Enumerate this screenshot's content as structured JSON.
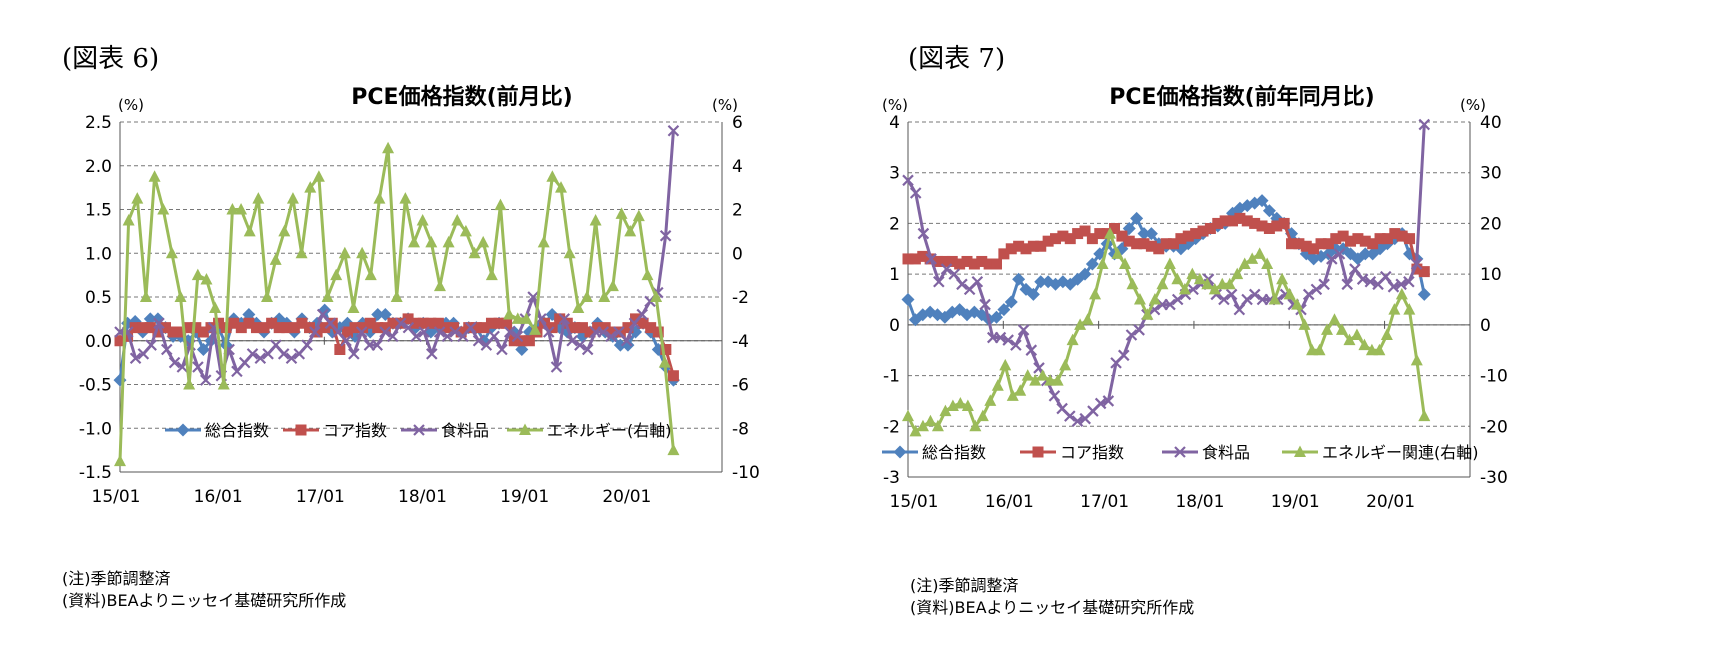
{
  "figures": [
    {
      "label": "(図表 6)",
      "note": "(注)季節調整済",
      "source": "(資料)BEAよりニッセイ基礎研究所作成"
    },
    {
      "label": "(図表 7)",
      "note": "(注)季節調整済",
      "source": "(資料)BEAよりニッセイ基礎研究所作成"
    }
  ],
  "chart_data": [
    {
      "type": "line",
      "title": "PCE価格指数(前月比)",
      "y_unit_left": "(%)",
      "y_unit_right": "(%)",
      "ylim": [
        -1.5,
        2.5
      ],
      "y2lim": [
        -10,
        6
      ],
      "yticks": [
        "2.5",
        "2.0",
        "1.5",
        "1.0",
        "0.5",
        "0.0",
        "-0.5",
        "-1.0",
        "-1.5"
      ],
      "y2ticks": [
        "6",
        "4",
        "2",
        "0",
        "-2",
        "-4",
        "-6",
        "-8",
        "-10"
      ],
      "xticks": [
        "15/01",
        "16/01",
        "17/01",
        "18/01",
        "19/01",
        "20/01"
      ],
      "grid": true,
      "legend_position": "bottom-inside",
      "x_start": "2015-01",
      "series": [
        {
          "name": "総合指数",
          "color": "#4f81bd",
          "marker": "diamond",
          "axis": "left",
          "values": [
            -0.45,
            0.2,
            0.22,
            0.1,
            0.25,
            0.25,
            0.15,
            0.05,
            0.05,
            0.0,
            0.1,
            -0.1,
            0.0,
            0.15,
            -0.05,
            0.25,
            0.2,
            0.3,
            0.2,
            0.1,
            0.2,
            0.25,
            0.2,
            0.1,
            0.25,
            0.15,
            0.2,
            0.35,
            0.1,
            0.15,
            0.2,
            0.05,
            0.2,
            0.1,
            0.3,
            0.3,
            0.2,
            0.2,
            0.25,
            0.15,
            0.2,
            0.1,
            0.15,
            0.2,
            0.2,
            0.1,
            0.15,
            0.15,
            0.0,
            0.15,
            0.2,
            0.2,
            0.1,
            -0.1,
            0.1,
            0.15,
            0.2,
            0.3,
            0.15,
            0.1,
            0.15,
            0.05,
            0.1,
            0.2,
            0.1,
            0.05,
            -0.05,
            -0.05,
            0.1,
            0.2,
            0.1,
            -0.1,
            -0.3,
            -0.45
          ]
        },
        {
          "name": "コア指数",
          "color": "#c0504d",
          "marker": "square",
          "axis": "left",
          "values": [
            0.0,
            0.05,
            0.15,
            0.15,
            0.15,
            0.1,
            0.15,
            0.1,
            0.1,
            0.15,
            0.15,
            0.1,
            0.15,
            0.2,
            0.15,
            0.2,
            0.15,
            0.2,
            0.15,
            0.15,
            0.2,
            0.15,
            0.15,
            0.15,
            0.2,
            0.15,
            0.1,
            0.15,
            0.2,
            -0.1,
            0.1,
            0.15,
            0.15,
            0.2,
            0.15,
            0.15,
            0.2,
            0.2,
            0.25,
            0.2,
            0.2,
            0.2,
            0.2,
            0.15,
            0.15,
            0.1,
            0.15,
            0.15,
            0.15,
            0.2,
            0.2,
            0.2,
            0.0,
            0.0,
            0.0,
            0.1,
            0.2,
            0.15,
            0.25,
            0.2,
            0.15,
            0.15,
            0.1,
            0.15,
            0.15,
            0.1,
            0.1,
            0.15,
            0.25,
            0.2,
            0.15,
            0.1,
            -0.1,
            -0.4
          ]
        },
        {
          "name": "食料品",
          "color": "#8064a2",
          "marker": "x",
          "axis": "left",
          "values": [
            0.1,
            0.1,
            -0.2,
            -0.15,
            -0.05,
            0.2,
            -0.1,
            -0.25,
            -0.3,
            -0.05,
            -0.3,
            -0.45,
            0.15,
            -0.4,
            -0.1,
            -0.35,
            -0.25,
            -0.15,
            -0.2,
            -0.15,
            -0.05,
            -0.15,
            -0.2,
            -0.15,
            -0.05,
            0.1,
            0.3,
            0.2,
            0.1,
            0.0,
            -0.15,
            0.1,
            -0.05,
            -0.05,
            0.1,
            0.05,
            0.2,
            0.15,
            0.05,
            0.1,
            -0.15,
            0.1,
            0.05,
            0.1,
            0.05,
            0.15,
            0.0,
            -0.05,
            0.05,
            -0.1,
            0.1,
            0.05,
            0.25,
            0.5,
            0.25,
            0.1,
            -0.3,
            0.25,
            0.0,
            -0.05,
            -0.1,
            0.1,
            0.1,
            0.05,
            0.1,
            0.0,
            0.2,
            0.3,
            0.45,
            0.55,
            1.2,
            2.4
          ]
        },
        {
          "name": "エネルギー(右軸)",
          "color": "#9bbb59",
          "marker": "triangle",
          "axis": "right",
          "values": [
            -9.5,
            1.5,
            2.5,
            -2,
            3.5,
            2,
            0,
            -2,
            -6,
            -1,
            -1.2,
            -2.5,
            -6,
            2,
            2,
            1,
            2.5,
            -2,
            -0.3,
            1,
            2.5,
            0,
            3,
            3.5,
            -2,
            -1,
            0,
            -2.5,
            0,
            -1,
            2.5,
            4.8,
            -2,
            2.5,
            0.5,
            1.5,
            0.5,
            -1.5,
            0.5,
            1.5,
            1,
            0,
            0.5,
            -1,
            2.2,
            -2.8,
            -3,
            -3,
            -3.5,
            0.5,
            3.5,
            3,
            0,
            -2.5,
            -2,
            1.5,
            -2,
            -1.5,
            1.8,
            1,
            1.7,
            -1,
            -2,
            -5,
            -9
          ]
        }
      ]
    },
    {
      "type": "line",
      "title": "PCE価格指数(前年同月比)",
      "y_unit_left": "(%)",
      "y_unit_right": "(%)",
      "ylim": [
        -3,
        4
      ],
      "y2lim": [
        -30,
        40
      ],
      "yticks": [
        "4",
        "3",
        "2",
        "1",
        "0",
        "-1",
        "-2",
        "-3"
      ],
      "y2ticks": [
        "40",
        "30",
        "20",
        "10",
        "0",
        "-10",
        "-20",
        "-30"
      ],
      "xticks": [
        "15/01",
        "16/01",
        "17/01",
        "18/01",
        "19/01",
        "20/01"
      ],
      "grid": true,
      "legend_position": "bottom-inside",
      "x_start": "2015-01",
      "series": [
        {
          "name": "総合指数",
          "color": "#4f81bd",
          "marker": "diamond",
          "axis": "left",
          "values": [
            0.5,
            0.1,
            0.2,
            0.25,
            0.2,
            0.15,
            0.25,
            0.3,
            0.2,
            0.25,
            0.2,
            0.1,
            0.15,
            0.3,
            0.45,
            0.9,
            0.7,
            0.6,
            0.85,
            0.85,
            0.8,
            0.85,
            0.8,
            0.9,
            1.0,
            1.2,
            1.4,
            1.6,
            1.4,
            1.5,
            1.9,
            2.1,
            1.8,
            1.8,
            1.6,
            1.55,
            1.55,
            1.5,
            1.6,
            1.7,
            1.8,
            1.9,
            1.95,
            2.0,
            2.2,
            2.3,
            2.35,
            2.4,
            2.45,
            2.25,
            2.1,
            2.0,
            1.8,
            1.6,
            1.4,
            1.3,
            1.35,
            1.4,
            1.5,
            1.5,
            1.4,
            1.3,
            1.4,
            1.4,
            1.5,
            1.6,
            1.7,
            1.8,
            1.4,
            1.3,
            0.6
          ]
        },
        {
          "name": "コア指数",
          "color": "#c0504d",
          "marker": "square",
          "axis": "left",
          "values": [
            1.3,
            1.3,
            1.35,
            1.3,
            1.25,
            1.25,
            1.25,
            1.2,
            1.25,
            1.2,
            1.25,
            1.2,
            1.2,
            1.4,
            1.5,
            1.55,
            1.5,
            1.55,
            1.55,
            1.65,
            1.7,
            1.75,
            1.7,
            1.8,
            1.85,
            1.7,
            1.8,
            1.8,
            1.9,
            1.75,
            1.65,
            1.6,
            1.6,
            1.55,
            1.5,
            1.6,
            1.6,
            1.7,
            1.75,
            1.8,
            1.85,
            1.9,
            2.0,
            2.05,
            2.05,
            2.1,
            2.05,
            2.0,
            1.95,
            1.9,
            1.95,
            2.0,
            1.6,
            1.6,
            1.55,
            1.5,
            1.6,
            1.6,
            1.7,
            1.75,
            1.65,
            1.7,
            1.65,
            1.6,
            1.7,
            1.7,
            1.8,
            1.75,
            1.7,
            1.1,
            1.05
          ]
        },
        {
          "name": "食料品",
          "color": "#8064a2",
          "marker": "x",
          "axis": "left",
          "values": [
            2.85,
            2.6,
            1.8,
            1.3,
            0.85,
            1.1,
            1.0,
            0.8,
            0.7,
            0.85,
            0.4,
            -0.25,
            -0.25,
            -0.3,
            -0.4,
            -0.1,
            -0.5,
            -0.85,
            -1.1,
            -1.4,
            -1.65,
            -1.8,
            -1.9,
            -1.85,
            -1.7,
            -1.55,
            -1.5,
            -0.75,
            -0.6,
            -0.2,
            -0.1,
            0.2,
            0.3,
            0.4,
            0.4,
            0.5,
            0.6,
            0.7,
            0.8,
            0.9,
            0.6,
            0.5,
            0.6,
            0.3,
            0.5,
            0.6,
            0.5,
            0.5,
            0.5,
            0.6,
            0.4,
            0.3,
            0.6,
            0.7,
            0.8,
            1.3,
            1.4,
            0.8,
            1.1,
            0.9,
            0.85,
            0.8,
            0.95,
            0.75,
            0.8,
            0.85,
            1.2,
            3.95
          ]
        },
        {
          "name": "エネルギー関連(右軸)",
          "color": "#9bbb59",
          "marker": "triangle",
          "axis": "right",
          "values": [
            -18,
            -21,
            -20,
            -19,
            -20,
            -17,
            -16,
            -15.5,
            -16,
            -20,
            -18,
            -15,
            -12,
            -8,
            -14,
            -13,
            -10,
            -11,
            -10,
            -11,
            -11,
            -8,
            -3,
            0,
            1,
            6,
            12,
            18,
            14,
            12,
            8,
            5,
            2,
            5,
            8,
            12,
            9,
            7,
            10,
            9,
            8,
            7,
            8,
            8,
            10,
            12,
            13,
            14,
            12,
            5,
            9,
            6,
            4,
            0,
            -5,
            -5,
            -1,
            1,
            -1,
            -3,
            -2,
            -4,
            -5,
            -5,
            -2,
            3,
            6,
            3,
            -7,
            -18
          ]
        }
      ]
    }
  ]
}
